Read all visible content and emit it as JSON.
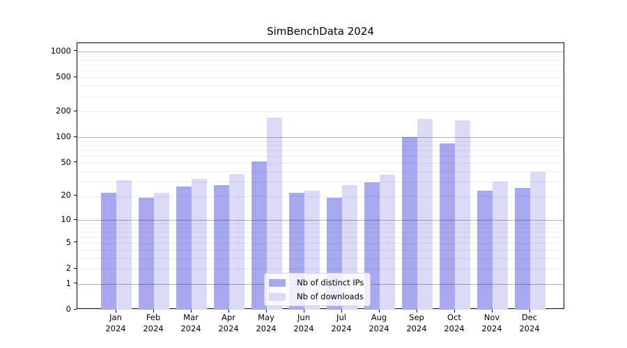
{
  "title": "SimBenchData 2024",
  "chart_data": {
    "type": "bar",
    "title": "SimBenchData 2024",
    "categories": [
      "Jan",
      "Feb",
      "Mar",
      "Apr",
      "May",
      "Jun",
      "Jul",
      "Aug",
      "Sep",
      "Oct",
      "Nov",
      "Dec"
    ],
    "xtick_year": "2024",
    "series": [
      {
        "name": "Nb of distinct IPs",
        "color": "#a8a8ef",
        "values": [
          22,
          19,
          26,
          27,
          52,
          22,
          19,
          29,
          100,
          85,
          23,
          25
        ]
      },
      {
        "name": "Nb of downloads",
        "color": "#dbdbf8",
        "values": [
          31,
          22,
          32,
          37,
          170,
          23,
          27,
          36,
          164,
          158,
          30,
          39
        ]
      }
    ],
    "yscale": "log1p",
    "ylim": [
      0,
      1250
    ],
    "yticks": [
      0,
      1,
      2,
      5,
      10,
      20,
      50,
      100,
      200,
      500,
      1000
    ],
    "major_gridlines": [
      1,
      10,
      100,
      1000
    ],
    "grid": "horizontal",
    "legend_position": "lower-center-inside",
    "colors": {
      "major_grid": "rgba(0,0,0,0.30)",
      "minor_grid": "rgba(0,0,0,0.07)",
      "spine": "#000000",
      "text": "#000000"
    }
  }
}
